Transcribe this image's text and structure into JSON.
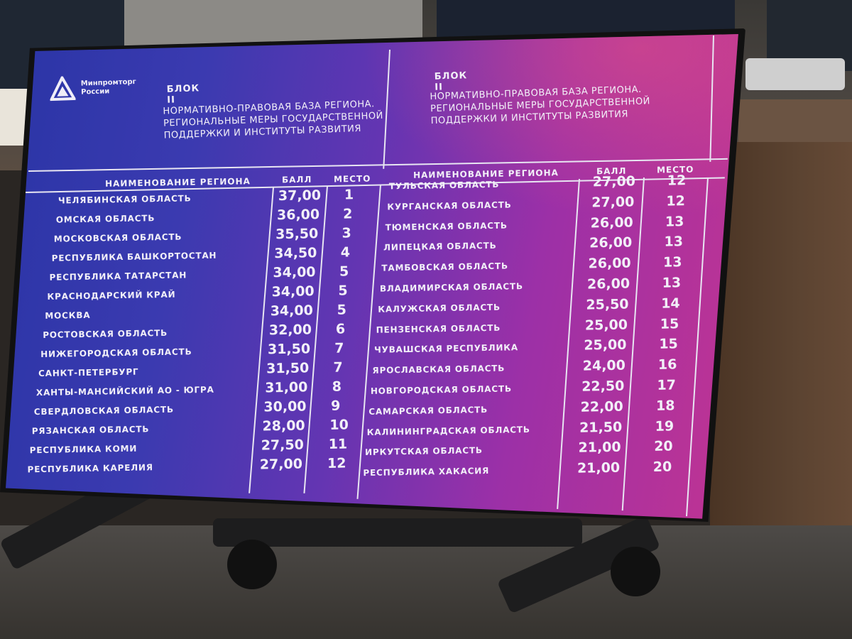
{
  "left_header": {
    "logo_text": "Минпромторг России",
    "block": "БЛОК II",
    "description": "НОРМАТИВНО-ПРАВОВАЯ БАЗА РЕГИОНА. РЕГИОНАЛЬНЫЕ МЕРЫ ГОСУДАРСТВЕННОЙ ПОДДЕРЖКИ И ИНСТИТУТЫ РАЗВИТИЯ"
  },
  "right_header": {
    "block": "БЛОК II",
    "description": "НОРМАТИВНО-ПРАВОВАЯ БАЗА РЕГИОНА. РЕГИОНАЛЬНЫЕ МЕРЫ ГОСУДАРСТВЕННОЙ ПОДДЕРЖКИ И ИНСТИТУТЫ РАЗВИТИЯ"
  },
  "columns": {
    "region": "НАИМЕНОВАНИЕ РЕГИОНА",
    "score": "БАЛЛ",
    "place": "МЕСТО"
  },
  "left_rows": [
    {
      "region": "ЧЕЛЯБИНСКАЯ ОБЛАСТЬ",
      "score": "37,00",
      "place": "1"
    },
    {
      "region": "ОМСКАЯ ОБЛАСТЬ",
      "score": "36,00",
      "place": "2"
    },
    {
      "region": "МОСКОВСКАЯ ОБЛАСТЬ",
      "score": "35,50",
      "place": "3"
    },
    {
      "region": "РЕСПУБЛИКА БАШКОРТОСТАН",
      "score": "34,50",
      "place": "4"
    },
    {
      "region": "РЕСПУБЛИКА ТАТАРСТАН",
      "score": "34,00",
      "place": "5"
    },
    {
      "region": "КРАСНОДАРСКИЙ КРАЙ",
      "score": "34,00",
      "place": "5"
    },
    {
      "region": "МОСКВА",
      "score": "34,00",
      "place": "5"
    },
    {
      "region": "РОСТОВСКАЯ ОБЛАСТЬ",
      "score": "32,00",
      "place": "6"
    },
    {
      "region": "НИЖЕГОРОДСКАЯ ОБЛАСТЬ",
      "score": "31,50",
      "place": "7"
    },
    {
      "region": "САНКТ-ПЕТЕРБУРГ",
      "score": "31,50",
      "place": "7"
    },
    {
      "region": "ХАНТЫ-МАНСИЙСКИЙ АО - ЮГРА",
      "score": "31,00",
      "place": "8"
    },
    {
      "region": "СВЕРДЛОВСКАЯ ОБЛАСТЬ",
      "score": "30,00",
      "place": "9"
    },
    {
      "region": "РЯЗАНСКАЯ ОБЛАСТЬ",
      "score": "28,00",
      "place": "10"
    },
    {
      "region": "РЕСПУБЛИКА КОМИ",
      "score": "27,50",
      "place": "11"
    },
    {
      "region": "РЕСПУБЛИКА КАРЕЛИЯ",
      "score": "27,00",
      "place": "12"
    }
  ],
  "right_rows": [
    {
      "region": "ТУЛЬСКАЯ ОБЛАСТЬ",
      "score": "27,00",
      "place": "12"
    },
    {
      "region": "КУРГАНСКАЯ ОБЛАСТЬ",
      "score": "27,00",
      "place": "12"
    },
    {
      "region": "ТЮМЕНСКАЯ ОБЛАСТЬ",
      "score": "26,00",
      "place": "13"
    },
    {
      "region": "ЛИПЕЦКАЯ ОБЛАСТЬ",
      "score": "26,00",
      "place": "13"
    },
    {
      "region": "ТАМБОВСКАЯ ОБЛАСТЬ",
      "score": "26,00",
      "place": "13"
    },
    {
      "region": "ВЛАДИМИРСКАЯ ОБЛАСТЬ",
      "score": "26,00",
      "place": "13"
    },
    {
      "region": "КАЛУЖСКАЯ ОБЛАСТЬ",
      "score": "25,50",
      "place": "14"
    },
    {
      "region": "ПЕНЗЕНСКАЯ ОБЛАСТЬ",
      "score": "25,00",
      "place": "15"
    },
    {
      "region": "ЧУВАШСКАЯ РЕСПУБЛИКА",
      "score": "25,00",
      "place": "15"
    },
    {
      "region": "ЯРОСЛАВСКАЯ ОБЛАСТЬ",
      "score": "24,00",
      "place": "16"
    },
    {
      "region": "НОВГОРОДСКАЯ ОБЛАСТЬ",
      "score": "22,50",
      "place": "17"
    },
    {
      "region": "САМАРСКАЯ ОБЛАСТЬ",
      "score": "22,00",
      "place": "18"
    },
    {
      "region": "КАЛИНИНГРАДСКАЯ ОБЛАСТЬ",
      "score": "21,50",
      "place": "19"
    },
    {
      "region": "ИРКУТСКАЯ ОБЛАСТЬ",
      "score": "21,00",
      "place": "20"
    },
    {
      "region": "РЕСПУБЛИКА ХАКАСИЯ",
      "score": "21,00",
      "place": "20"
    }
  ]
}
